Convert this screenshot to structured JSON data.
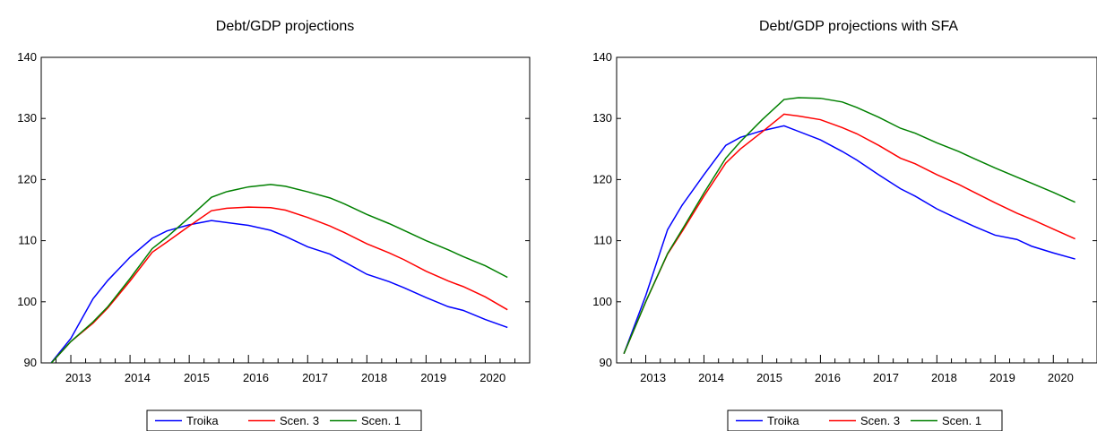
{
  "colors": {
    "Troika": "#0000ff",
    "Scen. 3": "#ff0000",
    "Scen. 1": "#008000",
    "axis": "#000000"
  },
  "chart_data": [
    {
      "type": "line",
      "title": "Debt/GDP projections",
      "xlabel": "",
      "ylabel": "",
      "ylim": [
        90,
        140
      ],
      "yticks": [
        90,
        100,
        110,
        120,
        130,
        140
      ],
      "xlim": [
        2012.5,
        2020.75
      ],
      "xtick_labels": [
        "2013",
        "2014",
        "2015",
        "2016",
        "2017",
        "2018",
        "2019",
        "2020"
      ],
      "legend_position": "bottom",
      "grid": false,
      "series": [
        {
          "name": "Troika",
          "points": [
            [
              2012.625,
              89.5
            ],
            [
              2013.0,
              94.0
            ],
            [
              2013.375,
              100.5
            ],
            [
              2013.625,
              103.5
            ],
            [
              2014.0,
              107.3
            ],
            [
              2014.375,
              110.4
            ],
            [
              2014.625,
              111.6
            ],
            [
              2015.0,
              112.6
            ],
            [
              2015.375,
              113.3
            ],
            [
              2016.0,
              112.5
            ],
            [
              2016.375,
              111.7
            ],
            [
              2016.625,
              110.7
            ],
            [
              2017.0,
              109.0
            ],
            [
              2017.375,
              107.8
            ],
            [
              2017.625,
              106.5
            ],
            [
              2018.0,
              104.5
            ],
            [
              2018.375,
              103.3
            ],
            [
              2018.625,
              102.3
            ],
            [
              2019.0,
              100.7
            ],
            [
              2019.375,
              99.2
            ],
            [
              2019.625,
              98.6
            ],
            [
              2020.0,
              97.1
            ],
            [
              2020.375,
              95.8
            ]
          ]
        },
        {
          "name": "Scen. 3",
          "points": [
            [
              2012.625,
              89.5
            ],
            [
              2013.0,
              93.5
            ],
            [
              2013.375,
              96.5
            ],
            [
              2013.625,
              99.0
            ],
            [
              2014.0,
              103.4
            ],
            [
              2014.375,
              108.1
            ],
            [
              2014.625,
              109.8
            ],
            [
              2015.0,
              112.4
            ],
            [
              2015.375,
              114.9
            ],
            [
              2015.625,
              115.3
            ],
            [
              2016.0,
              115.5
            ],
            [
              2016.375,
              115.4
            ],
            [
              2016.625,
              115.0
            ],
            [
              2017.0,
              113.8
            ],
            [
              2017.375,
              112.4
            ],
            [
              2017.625,
              111.3
            ],
            [
              2018.0,
              109.5
            ],
            [
              2018.375,
              108.0
            ],
            [
              2018.625,
              106.9
            ],
            [
              2019.0,
              105.0
            ],
            [
              2019.375,
              103.4
            ],
            [
              2019.625,
              102.5
            ],
            [
              2020.0,
              100.8
            ],
            [
              2020.375,
              98.7
            ]
          ]
        },
        {
          "name": "Scen. 1",
          "points": [
            [
              2012.625,
              89.5
            ],
            [
              2013.0,
              93.5
            ],
            [
              2013.375,
              96.7
            ],
            [
              2013.625,
              99.2
            ],
            [
              2014.0,
              103.8
            ],
            [
              2014.375,
              108.7
            ],
            [
              2014.625,
              110.6
            ],
            [
              2015.0,
              113.8
            ],
            [
              2015.375,
              117.1
            ],
            [
              2015.625,
              118.0
            ],
            [
              2016.0,
              118.8
            ],
            [
              2016.375,
              119.2
            ],
            [
              2016.625,
              118.9
            ],
            [
              2017.0,
              118.0
            ],
            [
              2017.375,
              117.0
            ],
            [
              2017.625,
              116.0
            ],
            [
              2018.0,
              114.3
            ],
            [
              2018.375,
              112.8
            ],
            [
              2018.625,
              111.7
            ],
            [
              2019.0,
              110.0
            ],
            [
              2019.375,
              108.5
            ],
            [
              2019.625,
              107.4
            ],
            [
              2020.0,
              105.9
            ],
            [
              2020.375,
              104.0
            ]
          ]
        }
      ]
    },
    {
      "type": "line",
      "title": "Debt/GDP projections with SFA",
      "xlabel": "",
      "ylabel": "",
      "ylim": [
        90,
        140
      ],
      "yticks": [
        90,
        100,
        110,
        120,
        130,
        140
      ],
      "xlim": [
        2012.5,
        2020.75
      ],
      "xtick_labels": [
        "2013",
        "2014",
        "2015",
        "2016",
        "2017",
        "2018",
        "2019",
        "2020"
      ],
      "legend_position": "bottom",
      "grid": false,
      "series": [
        {
          "name": "Troika",
          "points": [
            [
              2012.625,
              91.5
            ],
            [
              2013.0,
              101.0
            ],
            [
              2013.375,
              111.8
            ],
            [
              2013.625,
              115.8
            ],
            [
              2014.0,
              120.8
            ],
            [
              2014.375,
              125.6
            ],
            [
              2014.625,
              126.9
            ],
            [
              2015.0,
              128.0
            ],
            [
              2015.375,
              128.8
            ],
            [
              2016.0,
              126.5
            ],
            [
              2016.375,
              124.6
            ],
            [
              2016.625,
              123.2
            ],
            [
              2017.0,
              120.8
            ],
            [
              2017.375,
              118.5
            ],
            [
              2017.625,
              117.3
            ],
            [
              2018.0,
              115.2
            ],
            [
              2018.375,
              113.5
            ],
            [
              2018.625,
              112.4
            ],
            [
              2019.0,
              110.9
            ],
            [
              2019.375,
              110.2
            ],
            [
              2019.625,
              109.1
            ],
            [
              2020.0,
              108.0
            ],
            [
              2020.375,
              107.0
            ]
          ]
        },
        {
          "name": "Scen. 3",
          "points": [
            [
              2012.625,
              91.5
            ],
            [
              2013.0,
              100.0
            ],
            [
              2013.375,
              107.8
            ],
            [
              2013.625,
              111.5
            ],
            [
              2014.0,
              117.3
            ],
            [
              2014.375,
              122.7
            ],
            [
              2014.625,
              125.0
            ],
            [
              2015.0,
              127.8
            ],
            [
              2015.375,
              130.7
            ],
            [
              2015.625,
              130.4
            ],
            [
              2016.0,
              129.8
            ],
            [
              2016.375,
              128.5
            ],
            [
              2016.625,
              127.5
            ],
            [
              2017.0,
              125.6
            ],
            [
              2017.375,
              123.5
            ],
            [
              2017.625,
              122.6
            ],
            [
              2018.0,
              120.8
            ],
            [
              2018.375,
              119.2
            ],
            [
              2018.625,
              118.0
            ],
            [
              2019.0,
              116.2
            ],
            [
              2019.375,
              114.5
            ],
            [
              2019.625,
              113.5
            ],
            [
              2020.0,
              111.9
            ],
            [
              2020.375,
              110.3
            ]
          ]
        },
        {
          "name": "Scen. 1",
          "points": [
            [
              2012.625,
              91.5
            ],
            [
              2013.0,
              100.0
            ],
            [
              2013.375,
              107.9
            ],
            [
              2013.625,
              111.8
            ],
            [
              2014.0,
              117.8
            ],
            [
              2014.375,
              123.5
            ],
            [
              2014.625,
              126.2
            ],
            [
              2015.0,
              129.8
            ],
            [
              2015.375,
              133.1
            ],
            [
              2015.625,
              133.4
            ],
            [
              2016.0,
              133.3
            ],
            [
              2016.375,
              132.7
            ],
            [
              2016.625,
              131.8
            ],
            [
              2017.0,
              130.2
            ],
            [
              2017.375,
              128.4
            ],
            [
              2017.625,
              127.6
            ],
            [
              2018.0,
              126.0
            ],
            [
              2018.375,
              124.6
            ],
            [
              2018.625,
              123.5
            ],
            [
              2019.0,
              121.9
            ],
            [
              2019.375,
              120.4
            ],
            [
              2019.625,
              119.4
            ],
            [
              2020.0,
              117.9
            ],
            [
              2020.375,
              116.3
            ]
          ]
        }
      ]
    }
  ]
}
